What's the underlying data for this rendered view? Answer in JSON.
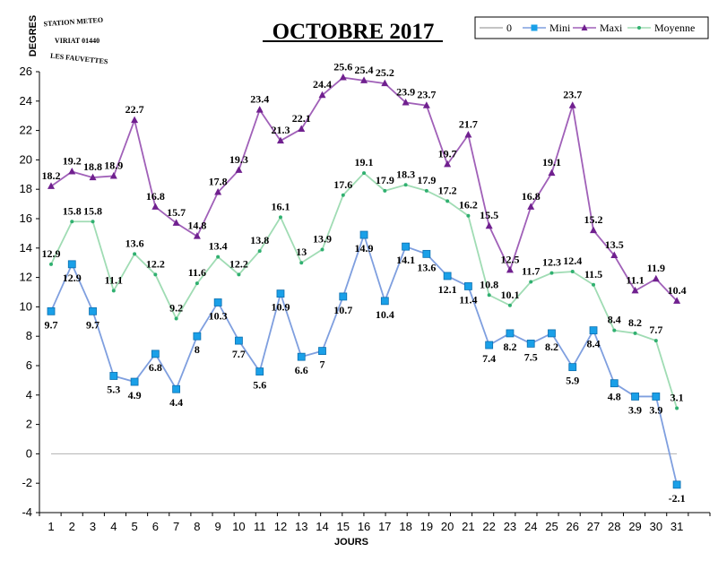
{
  "chart_data": {
    "type": "line",
    "title": "OCTOBRE 2017",
    "xlabel": "JOURS",
    "ylabel": "DEGRES",
    "ylim": [
      -4,
      26
    ],
    "yticks": [
      -4,
      -2,
      0,
      2,
      4,
      6,
      8,
      10,
      12,
      14,
      16,
      18,
      20,
      22,
      24,
      26
    ],
    "categories": [
      1,
      2,
      3,
      4,
      5,
      6,
      7,
      8,
      9,
      10,
      11,
      12,
      13,
      14,
      15,
      16,
      17,
      18,
      19,
      20,
      21,
      22,
      23,
      24,
      25,
      26,
      27,
      28,
      29,
      30,
      31
    ],
    "legend_position": "top-right",
    "grid": false,
    "series": [
      {
        "name": "0",
        "color": "#b0b0b0",
        "marker": "none",
        "values": [
          0,
          0,
          0,
          0,
          0,
          0,
          0,
          0,
          0,
          0,
          0,
          0,
          0,
          0,
          0,
          0,
          0,
          0,
          0,
          0,
          0,
          0,
          0,
          0,
          0,
          0,
          0,
          0,
          0,
          0,
          0
        ]
      },
      {
        "name": "Mini",
        "color": "#7f9fdf",
        "marker_color": "#1aa0e8",
        "marker": "square",
        "values": [
          9.7,
          12.9,
          9.7,
          5.3,
          4.9,
          6.8,
          4.4,
          8,
          10.3,
          7.7,
          5.6,
          10.9,
          6.6,
          7,
          10.7,
          14.9,
          10.4,
          14.1,
          13.6,
          12.1,
          11.4,
          7.4,
          8.2,
          7.5,
          8.2,
          5.9,
          8.4,
          4.8,
          3.9,
          3.9,
          -2.1
        ]
      },
      {
        "name": "Maxi",
        "color": "#a060b8",
        "marker_color": "#70208f",
        "marker": "triangle",
        "values": [
          18.2,
          19.2,
          18.8,
          18.9,
          22.7,
          16.8,
          15.7,
          14.8,
          17.8,
          19.3,
          23.4,
          21.3,
          22.1,
          24.4,
          25.6,
          25.4,
          25.2,
          23.9,
          23.7,
          19.7,
          21.7,
          15.5,
          12.5,
          16.8,
          19.1,
          23.7,
          15.2,
          13.5,
          11.1,
          11.9,
          10.4
        ]
      },
      {
        "name": "Moyenne",
        "color": "#a0dcb4",
        "marker_color": "#30b070",
        "marker": "dot",
        "values": [
          12.9,
          15.8,
          15.8,
          11.1,
          13.6,
          12.2,
          9.2,
          11.6,
          13.4,
          12.2,
          13.8,
          16.1,
          13,
          13.9,
          17.6,
          19.1,
          17.9,
          18.3,
          17.9,
          17.2,
          16.2,
          10.8,
          10.1,
          11.7,
          12.3,
          12.4,
          11.5,
          8.4,
          8.2,
          7.7,
          3.1
        ]
      }
    ]
  },
  "stamp": {
    "line1": "STATION METEO",
    "line2": "VIRIAT 01440",
    "line3": "LES FAUVETTES"
  }
}
